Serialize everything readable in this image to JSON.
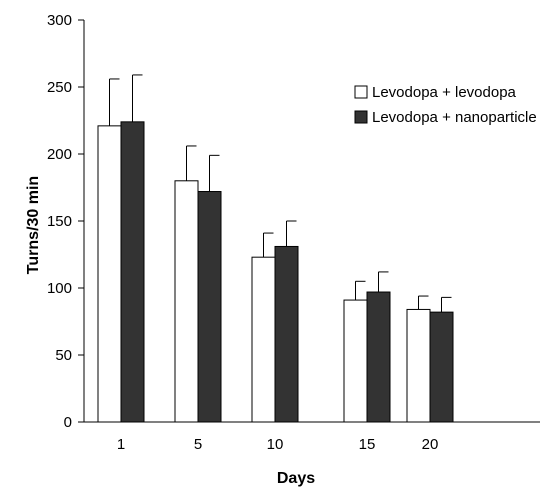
{
  "chart_data": {
    "type": "bar",
    "title": "",
    "xlabel": "Days",
    "ylabel": "Turns/30 min",
    "ylim": [
      0,
      300
    ],
    "yticks": [
      0,
      50,
      100,
      150,
      200,
      250,
      300
    ],
    "categories": [
      "1",
      "5",
      "10",
      "15",
      "20"
    ],
    "series": [
      {
        "name": "Levodopa + levodopa",
        "color": "#ffffff",
        "values": [
          221,
          180,
          123,
          91,
          84
        ],
        "errors": [
          35,
          26,
          18,
          14,
          10
        ]
      },
      {
        "name": "Levodopa + nanoparticle",
        "color": "#333333",
        "values": [
          224,
          172,
          131,
          97,
          82
        ],
        "errors": [
          35,
          27,
          19,
          15,
          11
        ]
      }
    ],
    "legend": "top-right",
    "grid": false,
    "error_bars": "upper"
  }
}
